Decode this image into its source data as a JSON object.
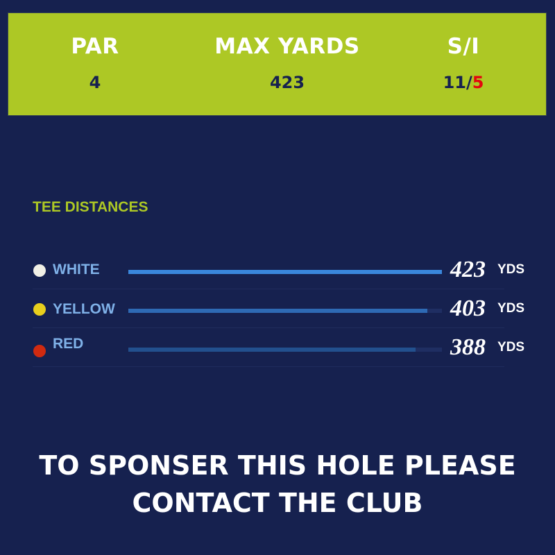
{
  "stats": {
    "par": {
      "label": "PAR",
      "value": "4"
    },
    "max_yards": {
      "label": "MAX YARDS",
      "value": "423"
    },
    "stroke_index": {
      "label": "S/I",
      "value_primary": "11/",
      "value_secondary": "5",
      "secondary_color": "#e3060e"
    }
  },
  "tee_distances": {
    "title": "TEE DISTANCES",
    "max": 423,
    "tees": [
      {
        "name": "WHITE",
        "distance": "423",
        "unit": "YDS",
        "dot_color": "#f1f0e6",
        "bar_color": "#3a87dc"
      },
      {
        "name": "YELLOW",
        "distance": "403",
        "unit": "YDS",
        "dot_color": "#e8cf1d",
        "bar_color": "#2e6ab4"
      },
      {
        "name": "RED",
        "distance": "388",
        "unit": "YDS",
        "dot_color": "#d02a10",
        "bar_color": "#22508e"
      }
    ]
  },
  "footer": {
    "line1": "TO SPONSER THIS HOLE PLEASE",
    "line2": "CONTACT THE CLUB"
  }
}
